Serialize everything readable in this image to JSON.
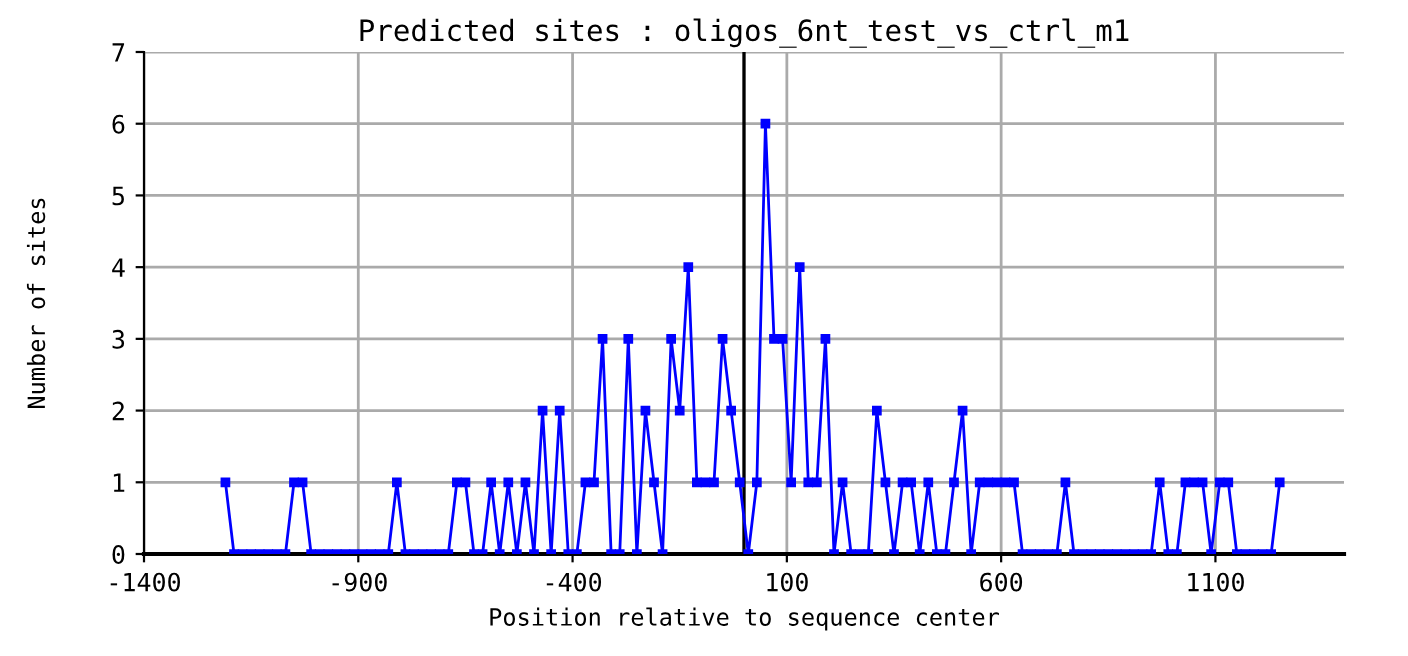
{
  "chart_data": {
    "type": "line",
    "title": "Predicted sites : oligos_6nt_test_vs_ctrl_m1",
    "xlabel": "Position relative to sequence center",
    "ylabel": "Number of sites",
    "x": [
      -1210,
      -1190,
      -1170,
      -1150,
      -1130,
      -1110,
      -1090,
      -1070,
      -1050,
      -1030,
      -1010,
      -990,
      -970,
      -950,
      -930,
      -910,
      -890,
      -870,
      -850,
      -830,
      -810,
      -790,
      -770,
      -750,
      -730,
      -710,
      -690,
      -670,
      -650,
      -630,
      -610,
      -590,
      -570,
      -550,
      -530,
      -510,
      -490,
      -470,
      -450,
      -430,
      -410,
      -390,
      -370,
      -350,
      -330,
      -310,
      -290,
      -270,
      -250,
      -230,
      -210,
      -190,
      -170,
      -150,
      -130,
      -110,
      -90,
      -70,
      -50,
      -30,
      -10,
      10,
      30,
      50,
      70,
      90,
      110,
      130,
      150,
      170,
      190,
      210,
      230,
      250,
      270,
      290,
      310,
      330,
      350,
      370,
      390,
      410,
      430,
      450,
      470,
      490,
      510,
      530,
      550,
      570,
      590,
      610,
      630,
      650,
      670,
      690,
      710,
      730,
      750,
      770,
      790,
      810,
      830,
      850,
      870,
      890,
      910,
      930,
      950,
      970,
      990,
      1010,
      1030,
      1050,
      1070,
      1090,
      1110,
      1130,
      1150,
      1170,
      1190,
      1210,
      1230,
      1250
    ],
    "series": [
      {
        "color": "#0000ff",
        "values": [
          1,
          0,
          0,
          0,
          0,
          0,
          0,
          0,
          1,
          1,
          0,
          0,
          0,
          0,
          0,
          0,
          0,
          0,
          0,
          0,
          1,
          0,
          0,
          0,
          0,
          0,
          0,
          1,
          1,
          0,
          0,
          1,
          0,
          1,
          0,
          1,
          0,
          2,
          0,
          2,
          0,
          0,
          1,
          1,
          3,
          0,
          0,
          3,
          0,
          2,
          1,
          0,
          3,
          2,
          4,
          1,
          1,
          1,
          3,
          2,
          1,
          0,
          1,
          6,
          3,
          3,
          1,
          4,
          1,
          1,
          3,
          0,
          1,
          0,
          0,
          0,
          2,
          1,
          0,
          1,
          1,
          0,
          1,
          0,
          0,
          1,
          2,
          0,
          1,
          1,
          1,
          1,
          1,
          0,
          0,
          0,
          0,
          0,
          1,
          0,
          0,
          0,
          0,
          0,
          0,
          0,
          0,
          0,
          0,
          1,
          0,
          0,
          1,
          1,
          1,
          0,
          1,
          1,
          0,
          0,
          0,
          0,
          0,
          1
        ]
      }
    ],
    "xlim": [
      -1400,
      1400
    ],
    "xticks": [
      -1400,
      -900,
      -400,
      100,
      600,
      1100
    ],
    "ylim": [
      0,
      7
    ],
    "yticks": [
      0,
      1,
      2,
      3,
      4,
      5,
      6,
      7
    ],
    "ref_lines": [
      {
        "axis": "x",
        "value": 0,
        "color": "#000000"
      }
    ],
    "grid": true,
    "marker": "square",
    "line_style": "solid"
  }
}
